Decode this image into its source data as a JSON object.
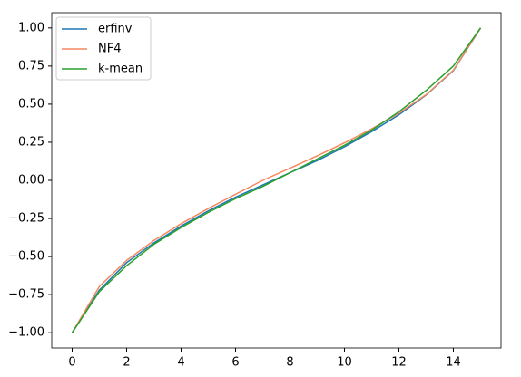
{
  "chart_data": {
    "type": "line",
    "x": [
      0,
      1,
      2,
      3,
      4,
      5,
      6,
      7,
      8,
      9,
      10,
      11,
      12,
      13,
      14,
      15
    ],
    "series": [
      {
        "name": "erfinv",
        "color": "#1f77b4",
        "values": [
          -1.0,
          -0.72,
          -0.54,
          -0.41,
          -0.3,
          -0.2,
          -0.11,
          -0.03,
          0.05,
          0.13,
          0.22,
          0.32,
          0.43,
          0.56,
          0.72,
          1.0
        ]
      },
      {
        "name": "NF4",
        "color": "#f4895f",
        "values": [
          -1.0,
          -0.6962,
          -0.5251,
          -0.3949,
          -0.2844,
          -0.1848,
          -0.0911,
          0.0,
          0.0796,
          0.1609,
          0.2461,
          0.3379,
          0.4407,
          0.5626,
          0.723,
          1.0
        ]
      },
      {
        "name": "k-mean",
        "color": "#2ca02c",
        "values": [
          -1.0,
          -0.73,
          -0.56,
          -0.42,
          -0.31,
          -0.21,
          -0.12,
          -0.04,
          0.05,
          0.14,
          0.23,
          0.33,
          0.45,
          0.59,
          0.75,
          1.0
        ]
      }
    ],
    "xlim": [
      -0.75,
      15.75
    ],
    "xticks": [
      0,
      2,
      4,
      6,
      8,
      10,
      12,
      14
    ],
    "ylim": [
      -1.1,
      1.1
    ],
    "yticks": [
      {
        "value": -1,
        "label": "−1.00"
      },
      {
        "value": -0.75,
        "label": "−0.75"
      },
      {
        "value": -0.5,
        "label": "−0.50"
      },
      {
        "value": -0.25,
        "label": "−0.25"
      },
      {
        "value": 0,
        "label": "0.00"
      },
      {
        "value": 0.25,
        "label": "0.25"
      },
      {
        "value": 0.5,
        "label": "0.50"
      },
      {
        "value": 0.75,
        "label": "0.75"
      },
      {
        "value": 1,
        "label": "1.00"
      }
    ],
    "legend": "upper left"
  }
}
